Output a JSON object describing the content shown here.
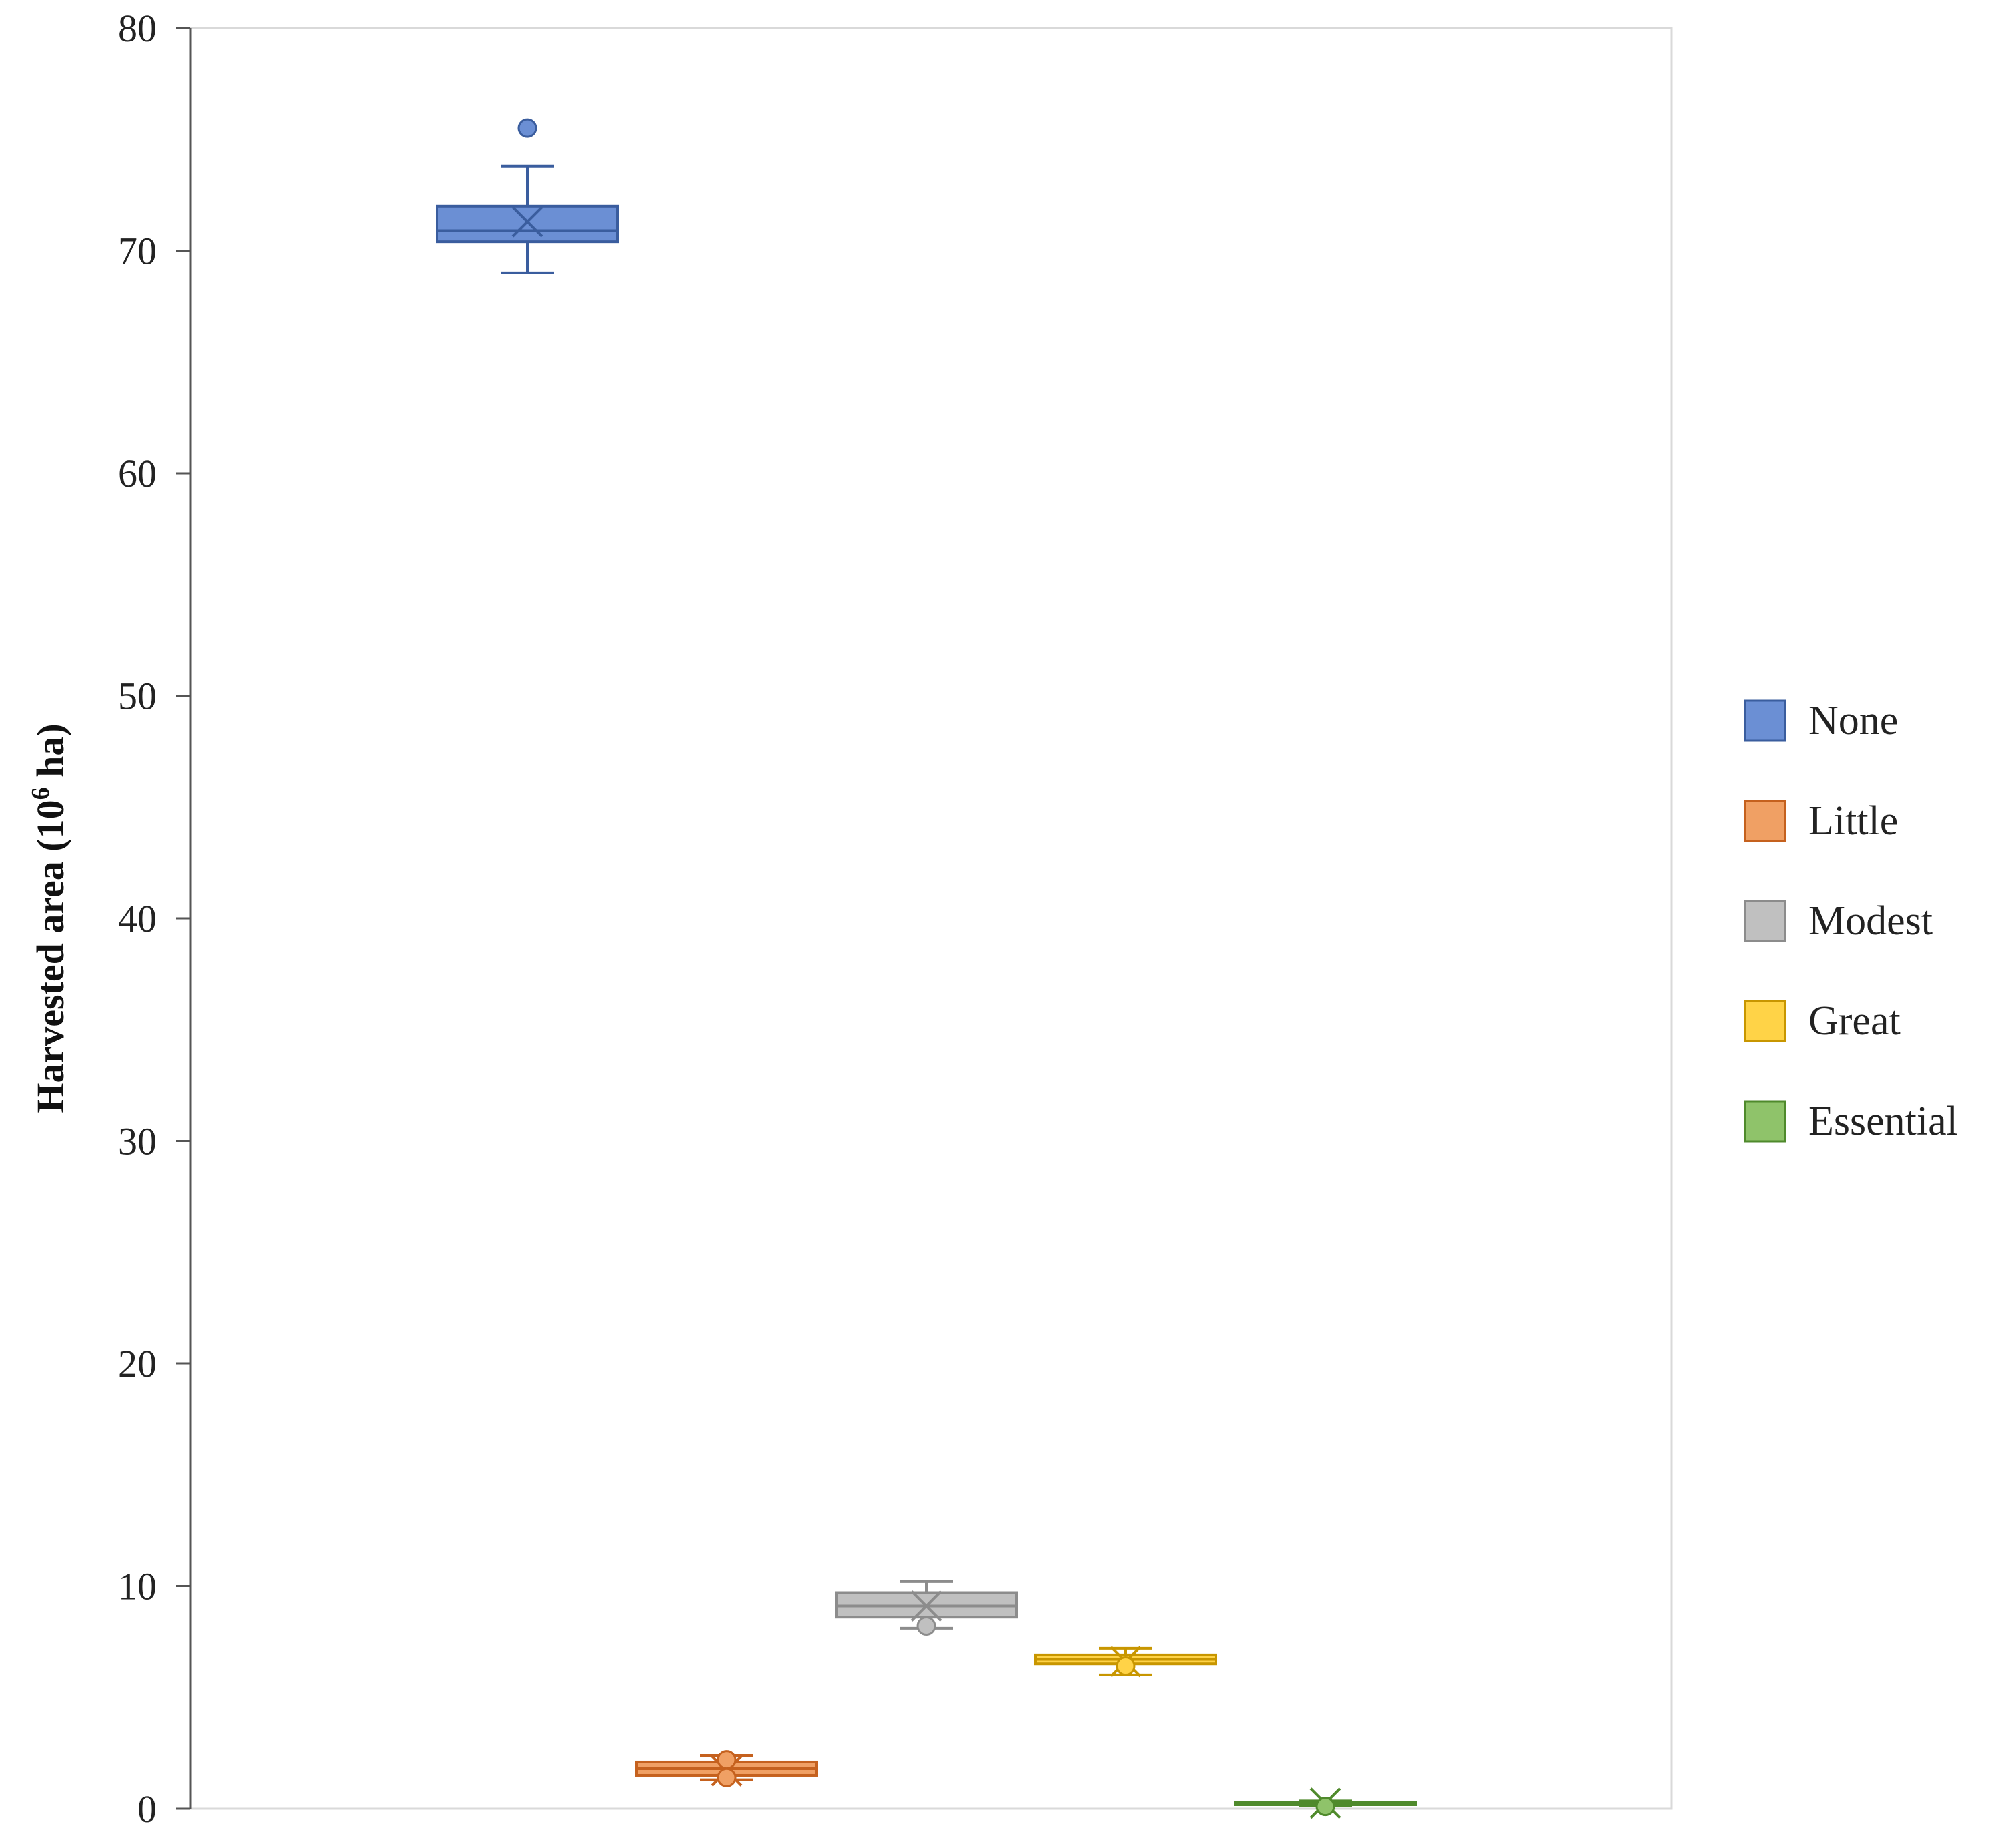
{
  "chart_data": {
    "type": "box",
    "ylabel": "Harvested area (10",
    "ylabel_sup": "6",
    "ylabel_tail": " ha)",
    "ylim": [
      0,
      80
    ],
    "yticks": [
      0,
      10,
      20,
      30,
      40,
      50,
      60,
      70,
      80
    ],
    "grid": false,
    "legend_position": "right",
    "series": [
      {
        "name": "None",
        "color": "#4472c4",
        "fill": "#6b8fd4",
        "stroke": "#3a5d9e",
        "min": 69.0,
        "q1": 70.4,
        "median": 70.9,
        "q3": 72.0,
        "max": 73.8,
        "mean": 71.3,
        "outliers": [
          75.5
        ]
      },
      {
        "name": "Little",
        "color": "#ed7d31",
        "fill": "#f0a064",
        "stroke": "#c5611e",
        "min": 1.3,
        "q1": 1.5,
        "median": 1.8,
        "q3": 2.1,
        "max": 2.4,
        "mean": 1.7,
        "outliers": [
          2.2,
          1.4
        ]
      },
      {
        "name": "Modest",
        "color": "#a5a5a5",
        "fill": "#c0c0c0",
        "stroke": "#8c8c8c",
        "min": 8.1,
        "q1": 8.6,
        "median": 9.1,
        "q3": 9.7,
        "max": 10.2,
        "mean": 9.1,
        "outliers": [
          8.2
        ]
      },
      {
        "name": "Great",
        "color": "#ffc000",
        "fill": "#ffd347",
        "stroke": "#c89600",
        "min": 6.0,
        "q1": 6.5,
        "median": 6.7,
        "q3": 6.9,
        "max": 7.2,
        "mean": 6.6,
        "outliers": [
          6.4
        ]
      },
      {
        "name": "Essential",
        "color": "#70ad47",
        "fill": "#8fc36a",
        "stroke": "#4f8a2c",
        "min": 0.15,
        "q1": 0.2,
        "median": 0.25,
        "q3": 0.3,
        "max": 0.35,
        "mean": 0.25,
        "outliers": [
          0.1
        ]
      }
    ]
  }
}
